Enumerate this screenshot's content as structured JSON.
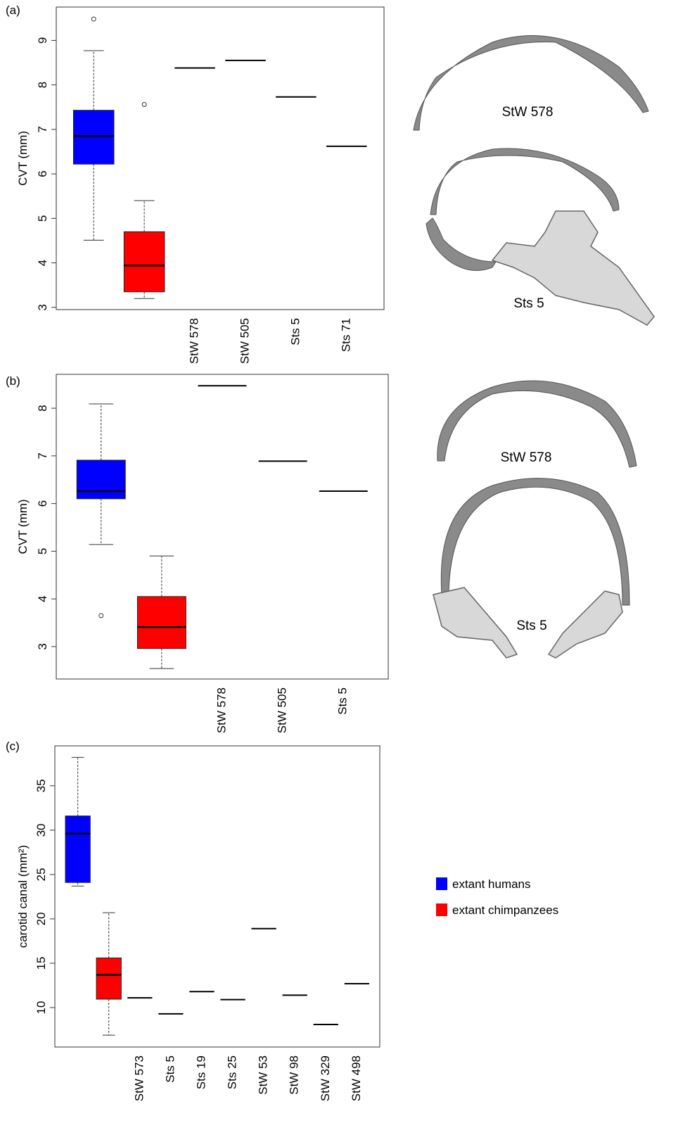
{
  "chart_data": [
    {
      "type": "box",
      "panel_label": "(a)",
      "ylabel": "CVT (mm)",
      "ylim": [
        2.95,
        9.75
      ],
      "yticks": [
        3,
        4,
        5,
        6,
        7,
        8,
        9
      ],
      "categories": [
        null,
        null,
        "StW 578",
        "StW 505",
        "Sts 5",
        "Sts 71"
      ],
      "values": [
        null,
        null,
        8.38,
        8.55,
        7.73,
        6.62
      ],
      "line_color": "#000000",
      "boxes": [
        {
          "color": "#0000ff",
          "min": 4.51,
          "q1": 6.22,
          "median": 6.85,
          "q3": 7.43,
          "max": 8.77,
          "outliers": [
            9.48
          ]
        },
        {
          "color": "#ff0000",
          "min": 3.2,
          "q1": 3.35,
          "median": 3.94,
          "q3": 4.7,
          "max": 5.4,
          "outliers": [
            7.56
          ]
        }
      ]
    },
    {
      "type": "box",
      "panel_label": "(b)",
      "ylabel": "CVT (mm)",
      "ylim": [
        2.32,
        8.71
      ],
      "yticks": [
        3,
        4,
        5,
        6,
        7,
        8
      ],
      "categories": [
        null,
        null,
        "StW 578",
        "StW 505",
        "Sts 5"
      ],
      "values": [
        null,
        null,
        8.47,
        6.89,
        6.26
      ],
      "line_color": "#000000",
      "boxes": [
        {
          "color": "#0000ff",
          "min": 5.14,
          "q1": 6.1,
          "median": 6.26,
          "q3": 6.91,
          "max": 8.09,
          "outliers": [
            3.65
          ]
        },
        {
          "color": "#ff0000",
          "min": 2.54,
          "q1": 2.96,
          "median": 3.41,
          "q3": 4.05,
          "max": 4.9,
          "outliers": []
        }
      ]
    },
    {
      "type": "box",
      "panel_label": "(c)",
      "ylabel": "carotid canal (mm²)",
      "ylim": [
        5.56,
        39.5
      ],
      "yticks": [
        10,
        15,
        20,
        25,
        30,
        35
      ],
      "categories": [
        null,
        null,
        "StW 573",
        "Sts 5",
        "Sts 19",
        "Sts 25",
        "StW 53",
        "StW 98",
        "StW 329",
        "StW 498"
      ],
      "values": [
        null,
        null,
        11.1,
        9.3,
        11.8,
        10.9,
        18.9,
        11.4,
        8.1,
        12.7
      ],
      "line_color": "#000000",
      "legend": "right",
      "boxes": [
        {
          "name": "extant humans",
          "color": "#0000ff",
          "min": 23.7,
          "q1": 24.1,
          "median": 29.6,
          "q3": 31.6,
          "max": 38.2,
          "outliers": []
        },
        {
          "name": "extant chimpanzees",
          "color": "#ff0000",
          "min": 6.9,
          "q1": 10.95,
          "median": 13.7,
          "q3": 15.6,
          "max": 20.7,
          "outliers": []
        }
      ]
    }
  ],
  "figures": [
    {
      "label": "StW 578"
    },
    {
      "label": "Sts 5"
    },
    {
      "label": "StW 578"
    },
    {
      "label": "Sts 5"
    }
  ]
}
